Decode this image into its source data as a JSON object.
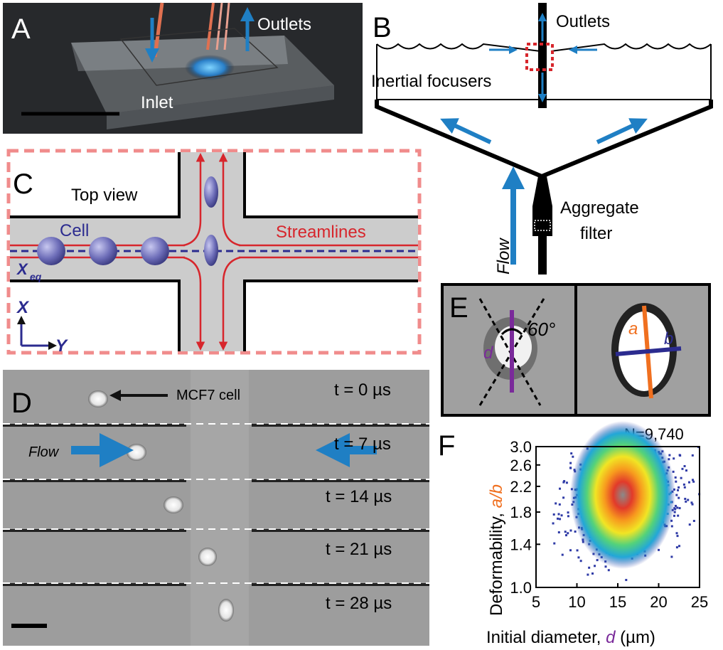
{
  "panel_a": {
    "letter": "A",
    "outlets": "Outlets",
    "inlet": "Inlet"
  },
  "panel_b": {
    "letter": "B",
    "outlets": "Outlets",
    "inertial": "Inertial focusers",
    "aggregate1": "Aggregate",
    "aggregate2": "filter",
    "flow": "Flow"
  },
  "panel_c": {
    "letter": "C",
    "top_view": "Top view",
    "cell": "Cell",
    "streamlines": "Streamlines",
    "xeq_main": "X",
    "xeq_sub": "eq",
    "axis_x": "X",
    "axis_y": "Y"
  },
  "panel_d": {
    "letter": "D",
    "mcf7": "MCF7 cell",
    "flow": "Flow",
    "times": [
      "t = 0 µs",
      "t = 7 µs",
      "t = 14 µs",
      "t = 21 µs",
      "t = 28 µs"
    ]
  },
  "panel_e": {
    "letter": "E",
    "angle": "60°",
    "d": "d",
    "a": "a",
    "b": "b"
  },
  "panel_f": {
    "letter": "F",
    "n": "N=9,740",
    "ylabel_main": "Deformability, ",
    "ylabel_ab": "a/b",
    "xlabel_main": "Initial diameter, ",
    "xlabel_d": "d",
    "xlabel_unit": " (µm)"
  },
  "colors": {
    "blue_arrow": "#1f7fc4",
    "red_stream": "#d7262c",
    "purple": "#2b2b8f",
    "channel_gray": "#cccccc",
    "dashed_box": "#f08c8c"
  },
  "chart_data": {
    "type": "scatter",
    "title": "N=9,740",
    "xlabel": "Initial diameter, d (µm)",
    "ylabel": "Deformability, a/b",
    "xlim": [
      5,
      25
    ],
    "ylim": [
      1.0,
      3.0
    ],
    "xticks": [
      "5",
      "10",
      "15",
      "20",
      "25"
    ],
    "yticks": [
      "1.0",
      "1.4",
      "1.8",
      "2.2",
      "2.6",
      "3.0"
    ],
    "yscale": "log",
    "density_peak": {
      "x": 16,
      "y": 2.0
    },
    "n": 9740
  }
}
